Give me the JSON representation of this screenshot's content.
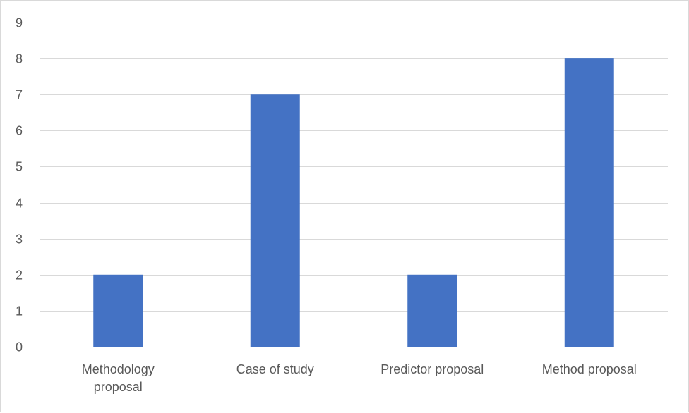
{
  "chart_data": {
    "type": "bar",
    "title": "",
    "xlabel": "",
    "ylabel": "",
    "categories": [
      [
        "Methodology",
        "proposal"
      ],
      [
        "Case of study"
      ],
      [
        "Predictor proposal"
      ],
      [
        "Method proposal"
      ]
    ],
    "values": [
      2,
      7,
      2,
      8
    ],
    "ylim": [
      0,
      9
    ],
    "yticks": [
      0,
      1,
      2,
      3,
      4,
      5,
      6,
      7,
      8,
      9
    ],
    "grid": true,
    "legend": "none",
    "bar_color": "#4472c4",
    "grid_color": "#d9d9d9",
    "text_color": "#595959"
  }
}
